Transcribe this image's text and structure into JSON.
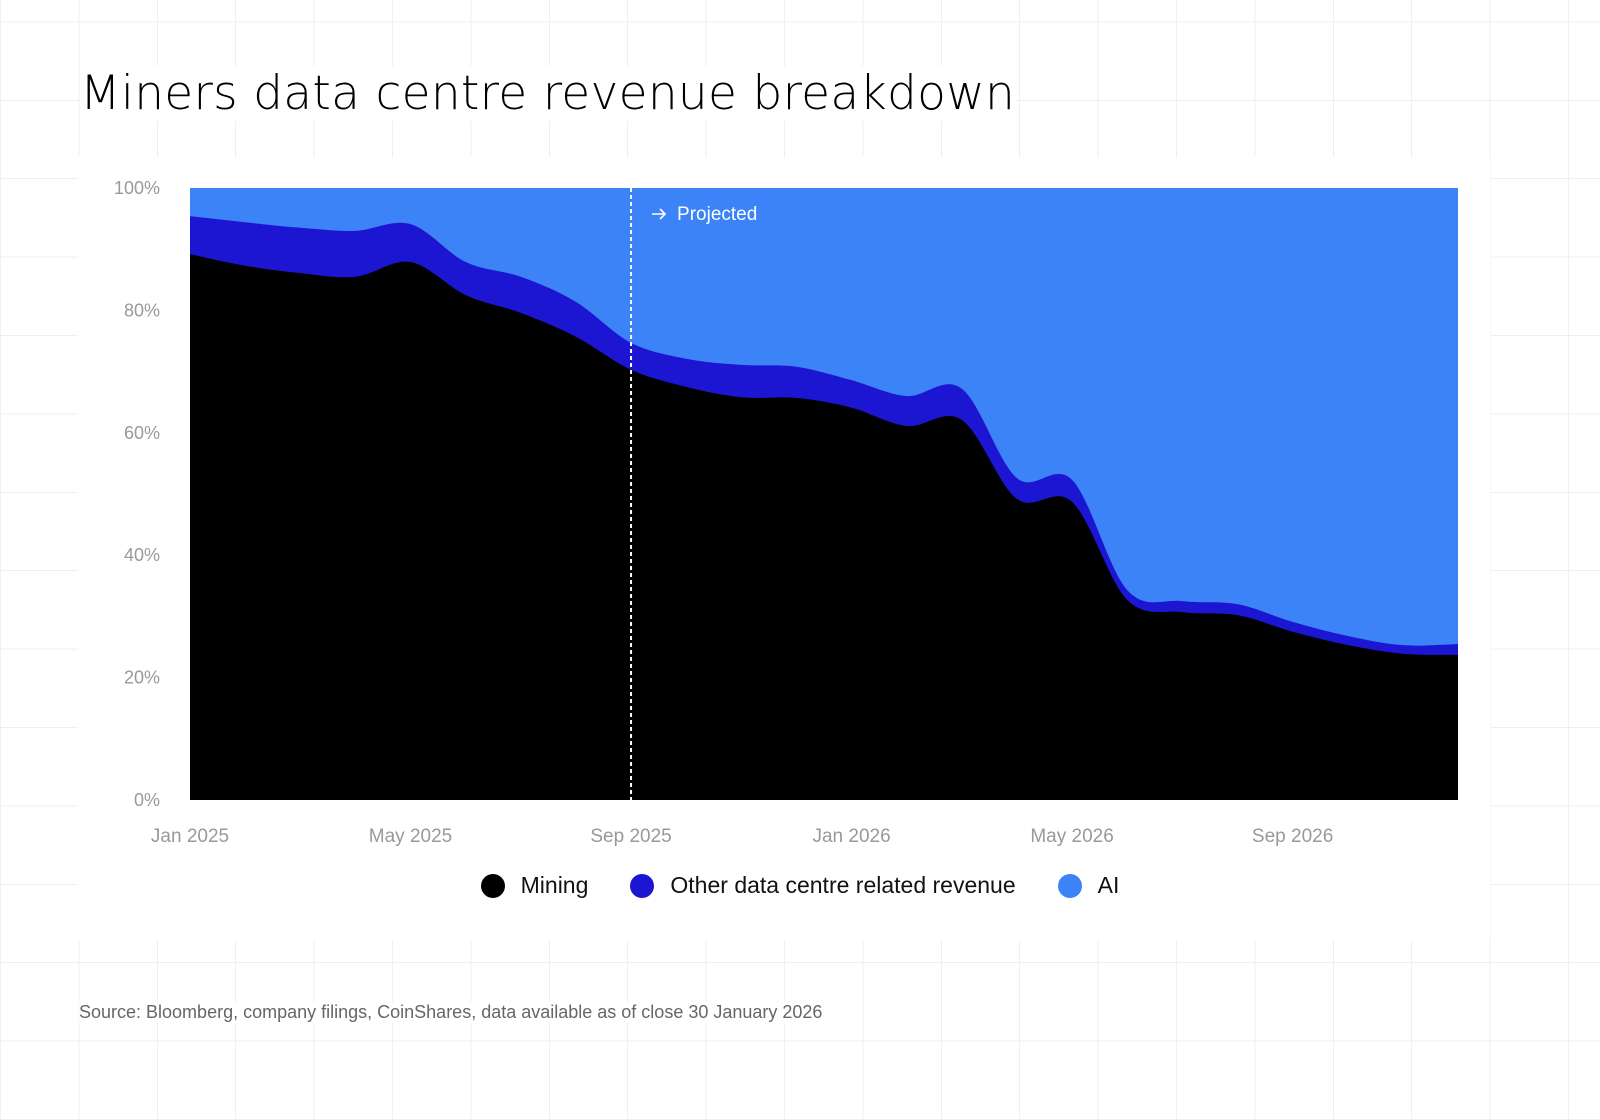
{
  "title": "Miners data centre revenue breakdown",
  "source": "Source: Bloomberg, company filings, CoinShares, data available as of close 30 January 2026",
  "colors": {
    "mining": "#000000",
    "other": "#1c16d2",
    "ai": "#3b83f6"
  },
  "chart_data": {
    "type": "area",
    "stacked": true,
    "title": "Miners data centre revenue breakdown",
    "x": [
      "2025-01",
      "2025-02",
      "2025-03",
      "2025-04",
      "2025-05",
      "2025-06",
      "2025-07",
      "2025-08",
      "2025-09",
      "2025-10",
      "2025-11",
      "2025-12",
      "2026-01",
      "2026-02",
      "2026-03",
      "2026-04",
      "2026-05",
      "2026-06",
      "2026-07",
      "2026-08",
      "2026-09",
      "2026-10",
      "2026-11",
      "2026-12"
    ],
    "x_tick_labels": [
      "Jan 2025",
      "May 2025",
      "Sep 2025",
      "Jan 2026",
      "May 2026",
      "Sep 2026"
    ],
    "y_tick_labels": [
      "0%",
      "20%",
      "40%",
      "60%",
      "80%",
      "100%"
    ],
    "ylim": [
      0,
      100
    ],
    "series": [
      {
        "name": "Mining",
        "values": [
          89.2,
          87.3,
          86.1,
          85.5,
          87.9,
          82.5,
          79.6,
          75.7,
          70.3,
          67.5,
          65.8,
          65.7,
          64.1,
          61.1,
          62.1,
          49.2,
          48.7,
          32.7,
          30.7,
          30.2,
          27.5,
          25.3,
          23.9,
          23.7
        ]
      },
      {
        "name": "Other data centre related revenue",
        "values": [
          6.2,
          7.1,
          7.4,
          7.5,
          6.2,
          5.4,
          5.9,
          5.7,
          4.4,
          4.6,
          5.3,
          5.1,
          4.5,
          4.9,
          5.1,
          3.4,
          3.6,
          1.6,
          1.8,
          1.8,
          1.6,
          1.5,
          1.4,
          1.8
        ]
      },
      {
        "name": "AI",
        "values": [
          4.6,
          5.6,
          6.5,
          7.0,
          5.9,
          12.1,
          14.5,
          18.6,
          25.3,
          27.9,
          28.9,
          29.2,
          31.4,
          34.0,
          32.8,
          47.4,
          47.7,
          65.7,
          67.5,
          68.0,
          70.9,
          73.2,
          74.7,
          74.5
        ]
      }
    ],
    "annotation": {
      "x": "2025-09",
      "label": "Projected",
      "icon": "arrow-right-icon",
      "style": "dashed vertical line"
    },
    "legend_position": "bottom",
    "grid": false
  }
}
